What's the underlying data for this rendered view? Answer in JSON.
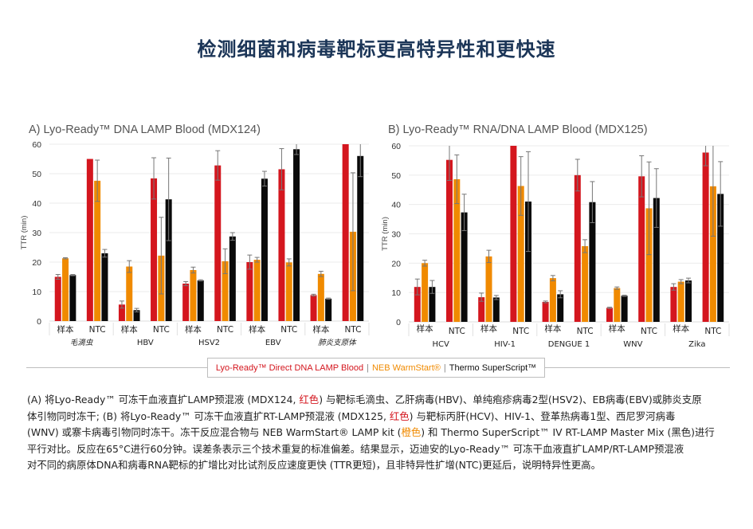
{
  "page": {
    "title": "检测细菌和病毒靶标更高特异性和更快速"
  },
  "colors": {
    "red": "#d4161e",
    "orange": "#f08a00",
    "black": "#0a0a0a",
    "grid": "#e6e6e6",
    "title_navy": "#1b3557"
  },
  "legend": {
    "items": [
      {
        "label": "Lyo-Ready™ Direct DNA LAMP Blood",
        "color": "#d4161e"
      },
      {
        "label": "NEB WarmStart®",
        "color": "#f08a00"
      },
      {
        "label": "Thermo SuperScript™",
        "color": "#111111"
      }
    ],
    "separator": "|"
  },
  "caption": {
    "lines": [
      [
        {
          "t": "(A) 将Lyo-Ready™ 可冻干血液直扩LAMP预混液 (MDX124, "
        },
        {
          "t": "红色",
          "c": "red"
        },
        {
          "t": ") 与靶标毛滴虫、乙肝病毒(HBV)、单纯疱疹病毒2型(HSV2)、EB病毒(EBV)或肺炎支原"
        }
      ],
      [
        {
          "t": "体引物同时冻干; (B) 将Lyo-Ready™ 可冻干血液直扩RT-LAMP预混液 (MDX125, "
        },
        {
          "t": "红色",
          "c": "red"
        },
        {
          "t": ") 与靶标丙肝(HCV)、HIV-1、登革热病毒1型、西尼罗河病毒"
        }
      ],
      [
        {
          "t": "(WNV) 或寨卡病毒引物同时冻干。冻干反应混合物与 NEB WarmStart® LAMP kit ("
        },
        {
          "t": "橙色",
          "c": "orange"
        },
        {
          "t": ") 和 Thermo SuperScript™ IV RT-LAMP Master Mix (黑色)进行"
        }
      ],
      [
        {
          "t": "平行对比。反应在65°C进行60分钟。误差条表示三个技术重复的标准偏差。结果显示，迈迪安的Lyo-Ready™ 可冻干血液直扩LAMP/RT-LAMP预混液"
        }
      ],
      [
        {
          "t": "对不同的病原体DNA和病毒RNA靶标的扩增比对比试剂反应速度更快 (TTR更短)，且非特异性扩增(NTC)更延后，说明特异性更高。"
        }
      ]
    ]
  },
  "chart_data": [
    {
      "type": "bar",
      "title": "A) Lyo-Ready™ DNA LAMP Blood (MDX124)",
      "xlabel": "",
      "ylabel": "TTR (min)",
      "ylim": [
        0,
        60
      ],
      "yticks": [
        0,
        10,
        20,
        30,
        40,
        50,
        60
      ],
      "grid": true,
      "legend_position": "bottom-center",
      "groups": [
        "毛滴虫",
        "HBV",
        "HSV2",
        "EBV",
        "肺炎支原体"
      ],
      "group_italic": [
        true,
        false,
        false,
        false,
        true
      ],
      "subcategories": [
        "样本",
        "NTC"
      ],
      "categories": [
        "毛滴虫 样本",
        "毛滴虫 NTC",
        "HBV 样本",
        "HBV NTC",
        "HSV2 样本",
        "HSV2 NTC",
        "EBV 样本",
        "EBV NTC",
        "肺炎支原体 样本",
        "肺炎支原体 NTC"
      ],
      "series": [
        {
          "name": "Lyo-Ready™ Direct DNA LAMP Blood",
          "color": "#d4161e",
          "values": [
            15.0,
            55.0,
            5.6,
            48.4,
            12.7,
            52.8,
            20.0,
            51.5,
            8.8,
            60.0
          ],
          "errors": [
            0.8,
            0,
            1.2,
            7.0,
            0.7,
            5.0,
            2.4,
            7.0,
            0.3,
            0
          ]
        },
        {
          "name": "NEB WarmStart®",
          "color": "#f08a00",
          "values": [
            21.3,
            47.6,
            18.5,
            22.2,
            17.3,
            20.3,
            20.8,
            19.9,
            16.0,
            30.3
          ],
          "errors": [
            0.2,
            7.0,
            2.0,
            13.0,
            1.0,
            4.2,
            0.8,
            1.2,
            0.9,
            20.0
          ]
        },
        {
          "name": "Thermo SuperScript™",
          "color": "#0a0a0a",
          "values": [
            15.6,
            23.0,
            3.7,
            41.3,
            13.8,
            28.7,
            48.3,
            58.3,
            7.6,
            56.0
          ],
          "errors": [
            0.2,
            1.3,
            0.6,
            14.0,
            0.2,
            1.3,
            2.5,
            1.8,
            0.2,
            7.0
          ]
        }
      ]
    },
    {
      "type": "bar",
      "title": "B) Lyo-Ready™ RNA/DNA LAMP Blood (MDX125)",
      "xlabel": "",
      "ylabel": "TTR (min)",
      "ylim": [
        0,
        60
      ],
      "yticks": [
        0,
        10,
        20,
        30,
        40,
        50,
        60
      ],
      "grid": true,
      "legend_position": "bottom-center",
      "groups": [
        "HCV",
        "HIV-1",
        "DENGUE 1",
        "WNV",
        "Zika"
      ],
      "group_italic": [
        false,
        false,
        false,
        false,
        false
      ],
      "subcategories": [
        "样本",
        "NTC"
      ],
      "categories": [
        "HCV 样本",
        "HCV NTC",
        "HIV-1 样本",
        "HIV-1 NTC",
        "DENGUE 1 样本",
        "DENGUE 1 NTC",
        "WNV 样本",
        "WNV NTC",
        "Zika 样本",
        "Zika NTC"
      ],
      "series": [
        {
          "name": "Lyo-Ready™ Direct DNA LAMP Blood",
          "color": "#d4161e",
          "values": [
            11.9,
            55.2,
            8.4,
            60.0,
            6.8,
            50.0,
            4.8,
            49.6,
            11.9,
            57.7
          ],
          "errors": [
            2.7,
            7.0,
            1.4,
            0,
            0.3,
            5.4,
            0.2,
            7.0,
            1.1,
            4.5
          ]
        },
        {
          "name": "NEB WarmStart®",
          "color": "#f08a00",
          "values": [
            20.0,
            48.6,
            22.3,
            46.3,
            14.9,
            25.8,
            11.5,
            38.7,
            13.7,
            46.2
          ],
          "errors": [
            1.0,
            8.3,
            2.1,
            10.0,
            0.9,
            2.2,
            0.4,
            15.8,
            0.7,
            17.0
          ]
        },
        {
          "name": "Thermo SuperScript™",
          "color": "#0a0a0a",
          "values": [
            11.9,
            37.3,
            8.3,
            41.0,
            9.4,
            40.8,
            8.9,
            42.2,
            14.1,
            43.6
          ],
          "errors": [
            2.2,
            6.2,
            0.7,
            17.0,
            1.2,
            7.0,
            0.2,
            10.0,
            0.8,
            11.0
          ]
        }
      ]
    }
  ]
}
